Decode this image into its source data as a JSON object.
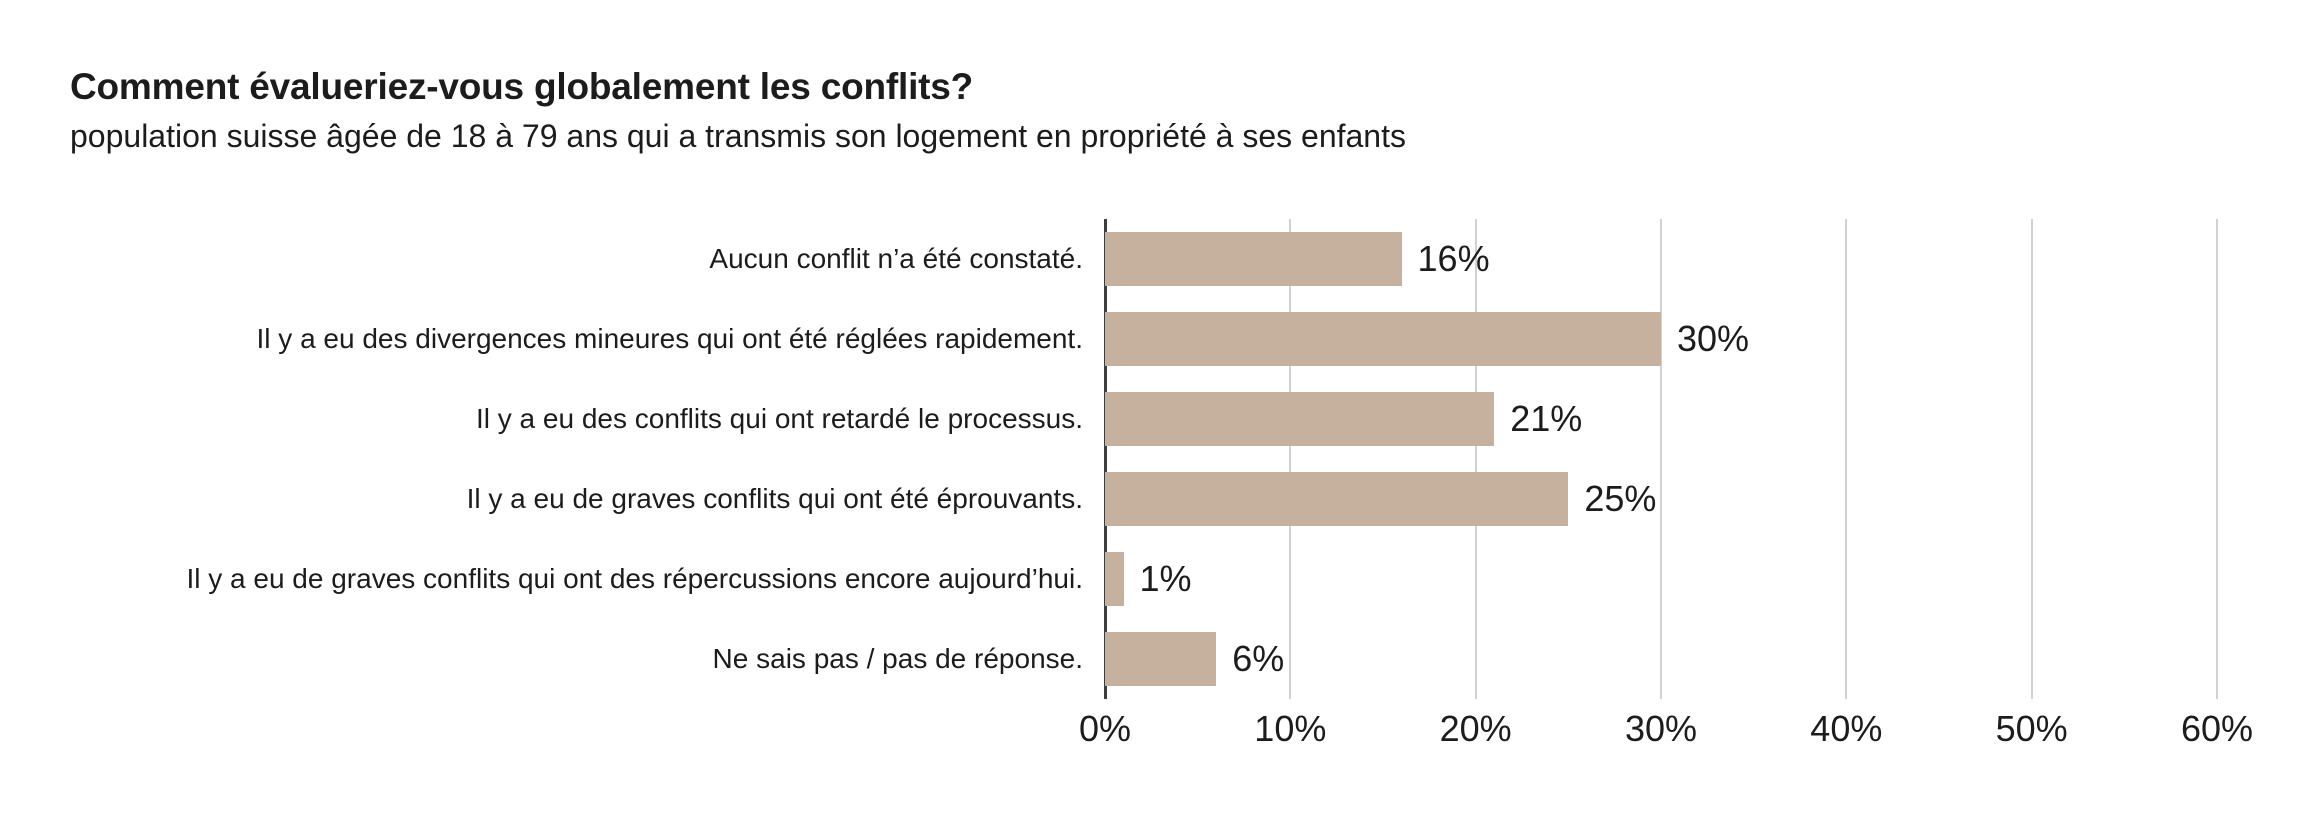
{
  "header": {
    "title": "Comment évalueriez-vous globalement les conflits?",
    "subtitle": "population suisse âgée de 18 à 79 ans qui a transmis son logement en propriété à ses enfants"
  },
  "chart_data": {
    "type": "bar",
    "orientation": "horizontal",
    "title": "Comment évalueriez-vous globalement les conflits?",
    "subtitle": "population suisse âgée de 18 à 79 ans qui a transmis son logement en propriété à ses enfants",
    "categories": [
      "Aucun conflit n’a été constaté.",
      "Il y a eu des divergences mineures qui ont été réglées rapidement.",
      "Il y a eu des conflits qui ont retardé le processus.",
      "Il y a eu de graves conflits qui ont été éprouvants.",
      "Il y a eu de graves conflits qui ont des répercussions encore aujourd’hui.",
      "Ne sais pas / pas de réponse."
    ],
    "values": [
      16,
      30,
      21,
      25,
      1,
      6
    ],
    "value_labels": [
      "16%",
      "30%",
      "21%",
      "25%",
      "1%",
      "6%"
    ],
    "x_ticks": [
      "0%",
      "10%",
      "20%",
      "30%",
      "40%",
      "50%",
      "60%"
    ],
    "xlim": [
      0,
      60
    ],
    "xlabel": "",
    "ylabel": "",
    "grid": "vertical gridlines every 10%, behind bars",
    "legend": "none",
    "colors": {
      "bar": "#c5b19d",
      "axis_line": "#3d3d3d",
      "gridline": "#d2d1cf",
      "text": "#1c1c1c",
      "background": "#ffffff"
    }
  }
}
